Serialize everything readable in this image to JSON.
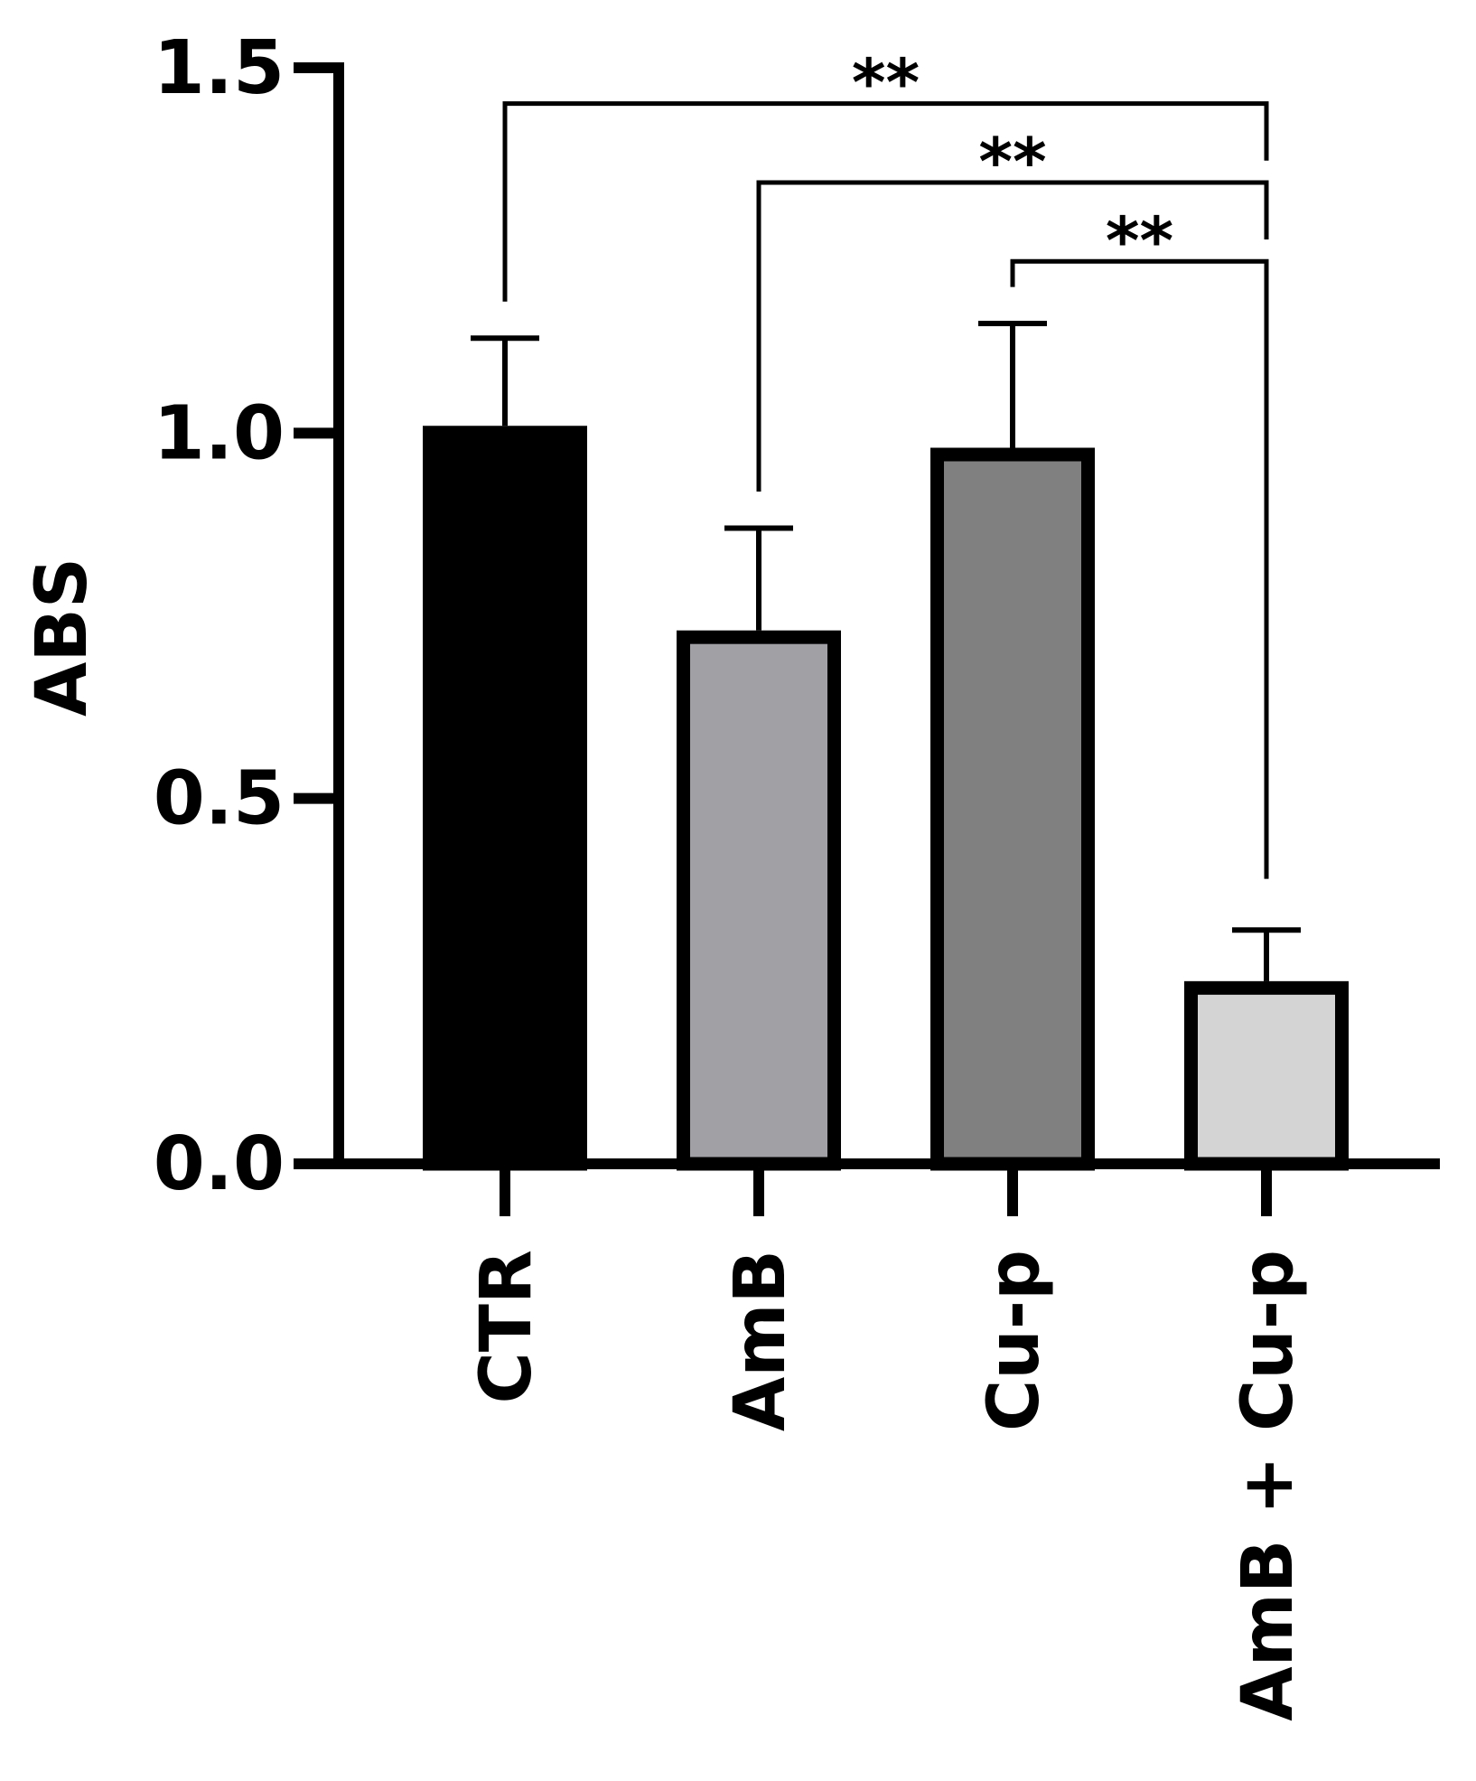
{
  "chart_data": {
    "type": "bar",
    "y_label": "ABS",
    "categories": [
      "CTR",
      "AmB",
      "Cu-p",
      "AmB + Cu-p"
    ],
    "values": [
      1.01,
      0.73,
      0.98,
      0.25
    ],
    "errors": [
      0.12,
      0.14,
      0.17,
      0.07
    ],
    "colors": [
      "#000000",
      "#a1a1a5",
      "#808080",
      "#d4d4d4"
    ],
    "ylim": [
      0,
      1.5
    ],
    "yticks": [
      {
        "value": 0,
        "label": "0.0"
      },
      0.5,
      {
        "value": 1,
        "label": "1.0"
      },
      1.5
    ],
    "annotations": [
      {
        "text": "**",
        "from": 0,
        "to": 3
      },
      {
        "text": "**",
        "from": 1,
        "to": 3
      },
      {
        "text": "**",
        "from": 2,
        "to": 3
      }
    ]
  }
}
